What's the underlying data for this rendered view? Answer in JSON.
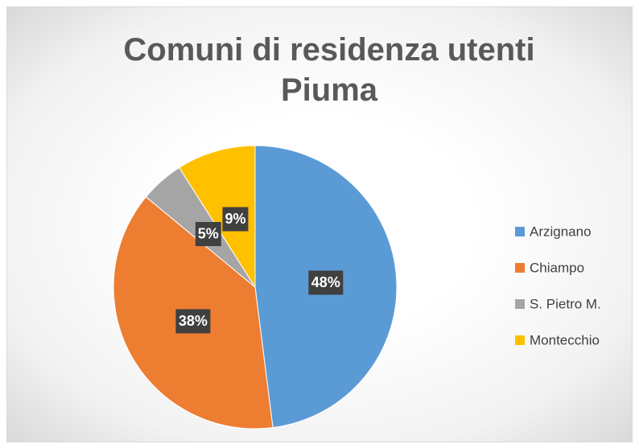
{
  "chart_data": {
    "type": "pie",
    "title": "Comuni di residenza utenti Piuma",
    "categories": [
      "Arzignano",
      "Chiampo",
      "S. Pietro M.",
      "Montecchio"
    ],
    "values": [
      48,
      38,
      5,
      9
    ],
    "value_labels": [
      "48%",
      "38%",
      "5%",
      "9%"
    ],
    "colors": [
      "#5b9bd5",
      "#ed7d31",
      "#a5a5a5",
      "#ffc000"
    ],
    "legend": "right"
  }
}
